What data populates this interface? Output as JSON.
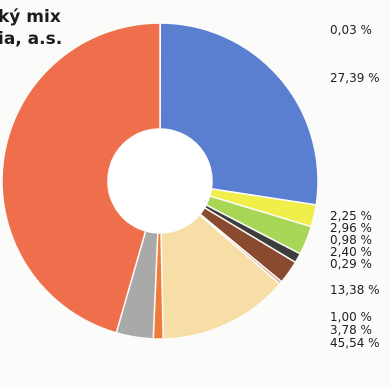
{
  "chart_data": {
    "type": "pie",
    "donut": true,
    "title_lines": [
      "ký mix",
      "ia, a.s."
    ],
    "slices": [
      {
        "value": 0.03,
        "label": "0,03 %",
        "color": "#7a94c8"
      },
      {
        "value": 27.39,
        "label": "27,39 %",
        "color": "#5b7fd0"
      },
      {
        "value": 2.25,
        "label": "2,25 %",
        "color": "#f0ef4a"
      },
      {
        "value": 2.96,
        "label": "2,96 %",
        "color": "#a8d657"
      },
      {
        "value": 0.98,
        "label": "0,98 %",
        "color": "#3d3d3d"
      },
      {
        "value": 2.4,
        "label": "2,40 %",
        "color": "#8a4a2f"
      },
      {
        "value": 0.29,
        "label": "0,29 %",
        "color": "#d8a088"
      },
      {
        "value": 13.38,
        "label": "13,38 %",
        "color": "#f7dea7"
      },
      {
        "value": 1.0,
        "label": "1,00 %",
        "color": "#f07a3a"
      },
      {
        "value": 3.78,
        "label": "3,78 %",
        "color": "#a9a9a9"
      },
      {
        "value": 45.54,
        "label": "45,54 %",
        "color": "#ef6f4c"
      }
    ]
  }
}
